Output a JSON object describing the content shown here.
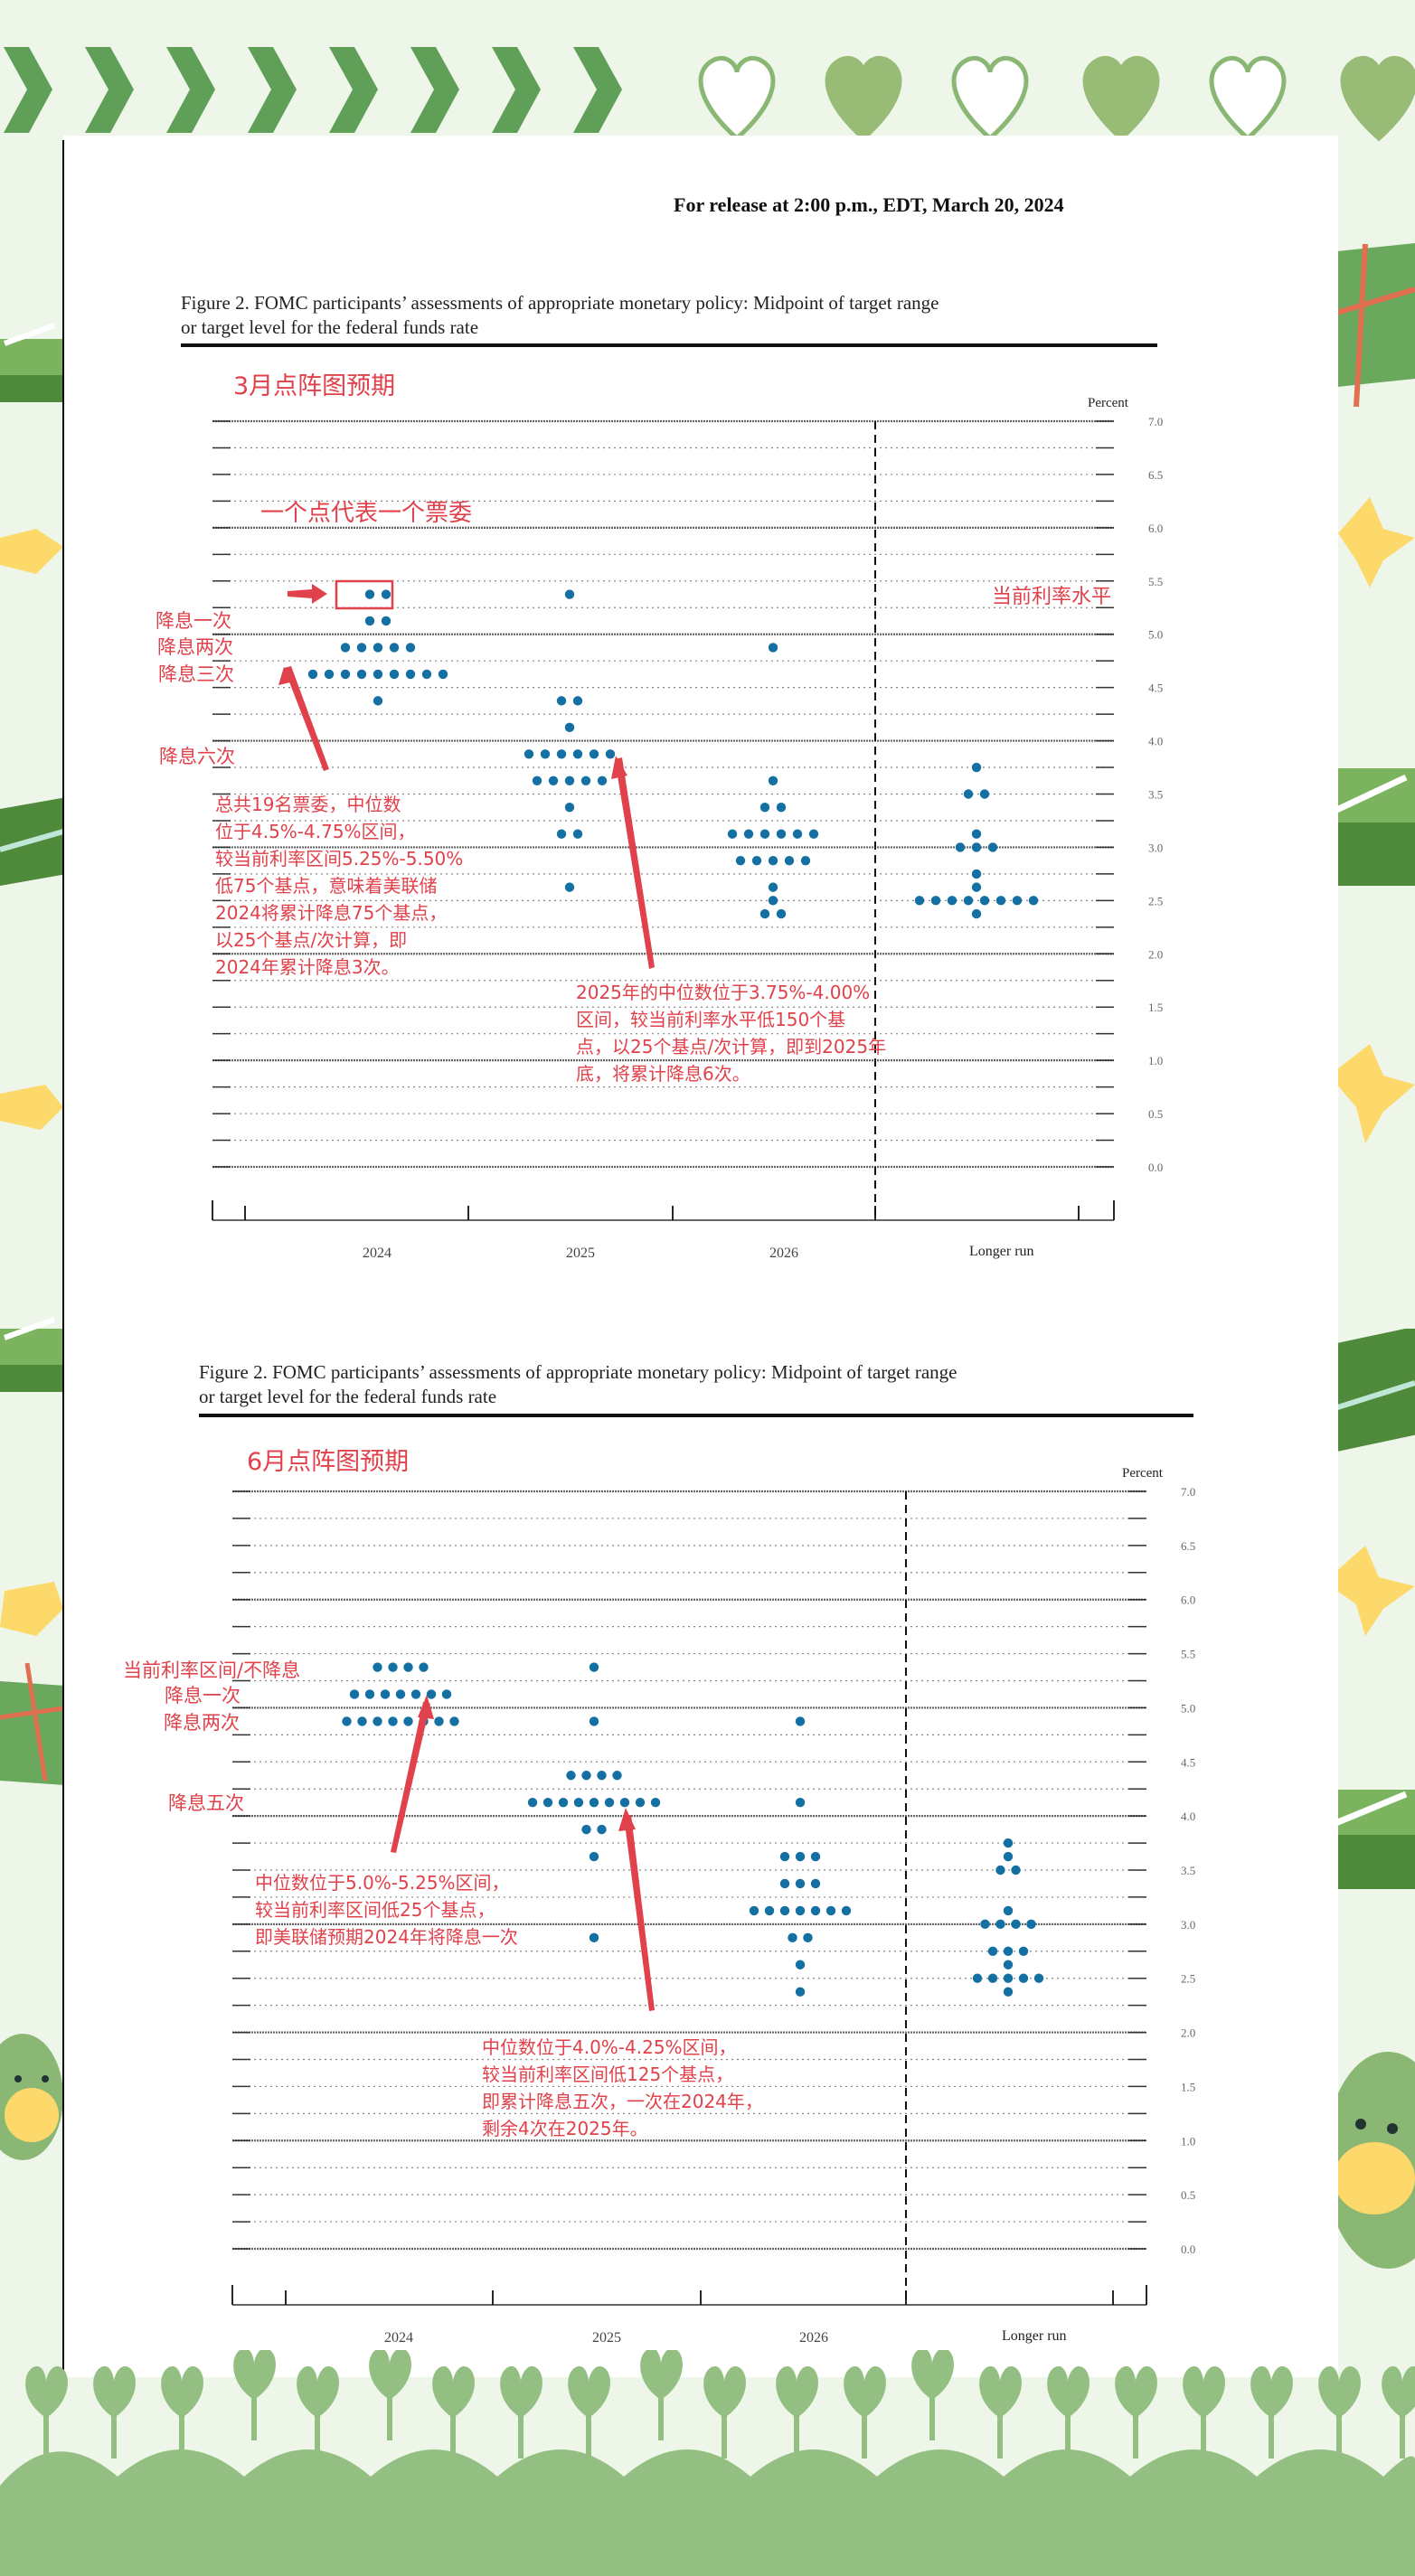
{
  "header": {
    "release_line": "For release at 2:00 p.m., EDT, March 20, 2024"
  },
  "figures": [
    {
      "caption_line1": "Figure 2.  FOMC participants’ assessments of appropriate monetary policy:  Midpoint of target range",
      "caption_line2": "or target level for the federal funds rate",
      "overlay_title": "3月点阵图预期",
      "percent_label": "Percent",
      "legend_note": "一个点代表一个票委",
      "current_rate_label": "当前利率水平",
      "side_labels": [
        "降息一次",
        "降息两次",
        "降息三次",
        "降息六次"
      ],
      "note_2024": "总共19名票委，中位数\n位于4.5%-4.75%区间，\n较当前利率区间5.25%-5.50%\n低75个基点，意味着美联储\n2024将累计降息75个基点，\n以25个基点/次计算，即\n2024年累计降息3次。",
      "note_2025": "2025年的中位数位于3.75%-4.00%\n区间，较当前利率水平低150个基\n点，以25个基点/次计算，即到2025年\n底，将累计降息6次。",
      "x_labels": [
        "2024",
        "2025",
        "2026",
        "Longer run"
      ]
    },
    {
      "caption_line1": "Figure 2.  FOMC participants’ assessments of appropriate monetary policy:  Midpoint of target range",
      "caption_line2": "or target level for the federal funds rate",
      "overlay_title": "6月点阵图预期",
      "percent_label": "Percent",
      "side_labels": [
        "当前利率区间/不降息",
        "降息一次",
        "降息两次",
        "降息五次"
      ],
      "note_2024": "中位数位于5.0%-5.25%区间，\n较当前利率区间低25个基点，\n即美联储预期2024年将降息一次",
      "note_2025": "中位数位于4.0%-4.25%区间，\n较当前利率区间低125个基点，\n即累计降息五次，一次在2024年，\n剩余4次在2025年。",
      "x_labels": [
        "2024",
        "2025",
        "2026",
        "Longer run"
      ]
    }
  ],
  "chart_data": [
    {
      "type": "scatter",
      "title": "March 2024 FOMC dot plot (3月点阵图预期)",
      "xlabel": "",
      "ylabel": "Percent",
      "ylim": [
        0,
        7
      ],
      "yticks": [
        "0.0",
        "0.5",
        "1.0",
        "1.5",
        "2.0",
        "2.5",
        "3.0",
        "3.5",
        "4.0",
        "4.5",
        "5.0",
        "5.5",
        "6.0",
        "6.5",
        "7.0"
      ],
      "categories": [
        "2024",
        "2025",
        "2026",
        "Longer run"
      ],
      "series": [
        {
          "name": "2024",
          "points": [
            {
              "rate": 5.375,
              "count": 2
            },
            {
              "rate": 5.125,
              "count": 2
            },
            {
              "rate": 4.875,
              "count": 5
            },
            {
              "rate": 4.625,
              "count": 9
            },
            {
              "rate": 4.375,
              "count": 1
            }
          ]
        },
        {
          "name": "2025",
          "points": [
            {
              "rate": 5.375,
              "count": 1
            },
            {
              "rate": 4.375,
              "count": 2
            },
            {
              "rate": 4.125,
              "count": 1
            },
            {
              "rate": 3.875,
              "count": 6
            },
            {
              "rate": 3.625,
              "count": 5
            },
            {
              "rate": 3.375,
              "count": 1
            },
            {
              "rate": 3.125,
              "count": 2
            },
            {
              "rate": 2.625,
              "count": 1
            }
          ]
        },
        {
          "name": "2026",
          "points": [
            {
              "rate": 4.875,
              "count": 1
            },
            {
              "rate": 3.625,
              "count": 1
            },
            {
              "rate": 3.375,
              "count": 2
            },
            {
              "rate": 3.125,
              "count": 6
            },
            {
              "rate": 2.875,
              "count": 5
            },
            {
              "rate": 2.625,
              "count": 1
            },
            {
              "rate": 2.5,
              "count": 1
            },
            {
              "rate": 2.375,
              "count": 2
            }
          ]
        },
        {
          "name": "Longer run",
          "points": [
            {
              "rate": 3.75,
              "count": 1
            },
            {
              "rate": 3.5,
              "count": 2
            },
            {
              "rate": 3.125,
              "count": 1
            },
            {
              "rate": 3.0,
              "count": 3
            },
            {
              "rate": 2.75,
              "count": 1
            },
            {
              "rate": 2.625,
              "count": 1
            },
            {
              "rate": 2.5,
              "count": 8
            },
            {
              "rate": 2.375,
              "count": 1
            }
          ]
        }
      ],
      "annotations": [
        "一个点代表一个票委",
        "当前利率水平",
        "降息一次",
        "降息两次",
        "降息三次",
        "降息六次"
      ]
    },
    {
      "type": "scatter",
      "title": "June 2024 FOMC dot plot (6月点阵图预期)",
      "xlabel": "",
      "ylabel": "Percent",
      "ylim": [
        0,
        7
      ],
      "yticks": [
        "0.0",
        "0.5",
        "1.0",
        "1.5",
        "2.0",
        "2.5",
        "3.0",
        "3.5",
        "4.0",
        "4.5",
        "5.0",
        "5.5",
        "6.0",
        "6.5",
        "7.0"
      ],
      "categories": [
        "2024",
        "2025",
        "2026",
        "Longer run"
      ],
      "series": [
        {
          "name": "2024",
          "points": [
            {
              "rate": 5.375,
              "count": 4
            },
            {
              "rate": 5.125,
              "count": 7
            },
            {
              "rate": 4.875,
              "count": 8
            }
          ]
        },
        {
          "name": "2025",
          "points": [
            {
              "rate": 5.375,
              "count": 1
            },
            {
              "rate": 4.875,
              "count": 1
            },
            {
              "rate": 4.375,
              "count": 4
            },
            {
              "rate": 4.125,
              "count": 9
            },
            {
              "rate": 3.875,
              "count": 2
            },
            {
              "rate": 3.625,
              "count": 1
            },
            {
              "rate": 2.875,
              "count": 1
            }
          ]
        },
        {
          "name": "2026",
          "points": [
            {
              "rate": 4.875,
              "count": 1
            },
            {
              "rate": 4.125,
              "count": 1
            },
            {
              "rate": 3.625,
              "count": 3
            },
            {
              "rate": 3.375,
              "count": 3
            },
            {
              "rate": 3.125,
              "count": 7
            },
            {
              "rate": 2.875,
              "count": 2
            },
            {
              "rate": 2.625,
              "count": 1
            },
            {
              "rate": 2.375,
              "count": 1
            }
          ]
        },
        {
          "name": "Longer run",
          "points": [
            {
              "rate": 3.75,
              "count": 1
            },
            {
              "rate": 3.625,
              "count": 1
            },
            {
              "rate": 3.5,
              "count": 2
            },
            {
              "rate": 3.125,
              "count": 1
            },
            {
              "rate": 3.0,
              "count": 4
            },
            {
              "rate": 2.75,
              "count": 3
            },
            {
              "rate": 2.625,
              "count": 1
            },
            {
              "rate": 2.5,
              "count": 5
            },
            {
              "rate": 2.375,
              "count": 1
            }
          ]
        }
      ],
      "annotations": [
        "当前利率区间/不降息",
        "降息一次",
        "降息两次",
        "降息五次"
      ]
    }
  ],
  "colors": {
    "dot": "#1470a3",
    "annotation_red": "#e0414a",
    "theme_green": "#6aa85e",
    "light_green": "#9bc386"
  }
}
